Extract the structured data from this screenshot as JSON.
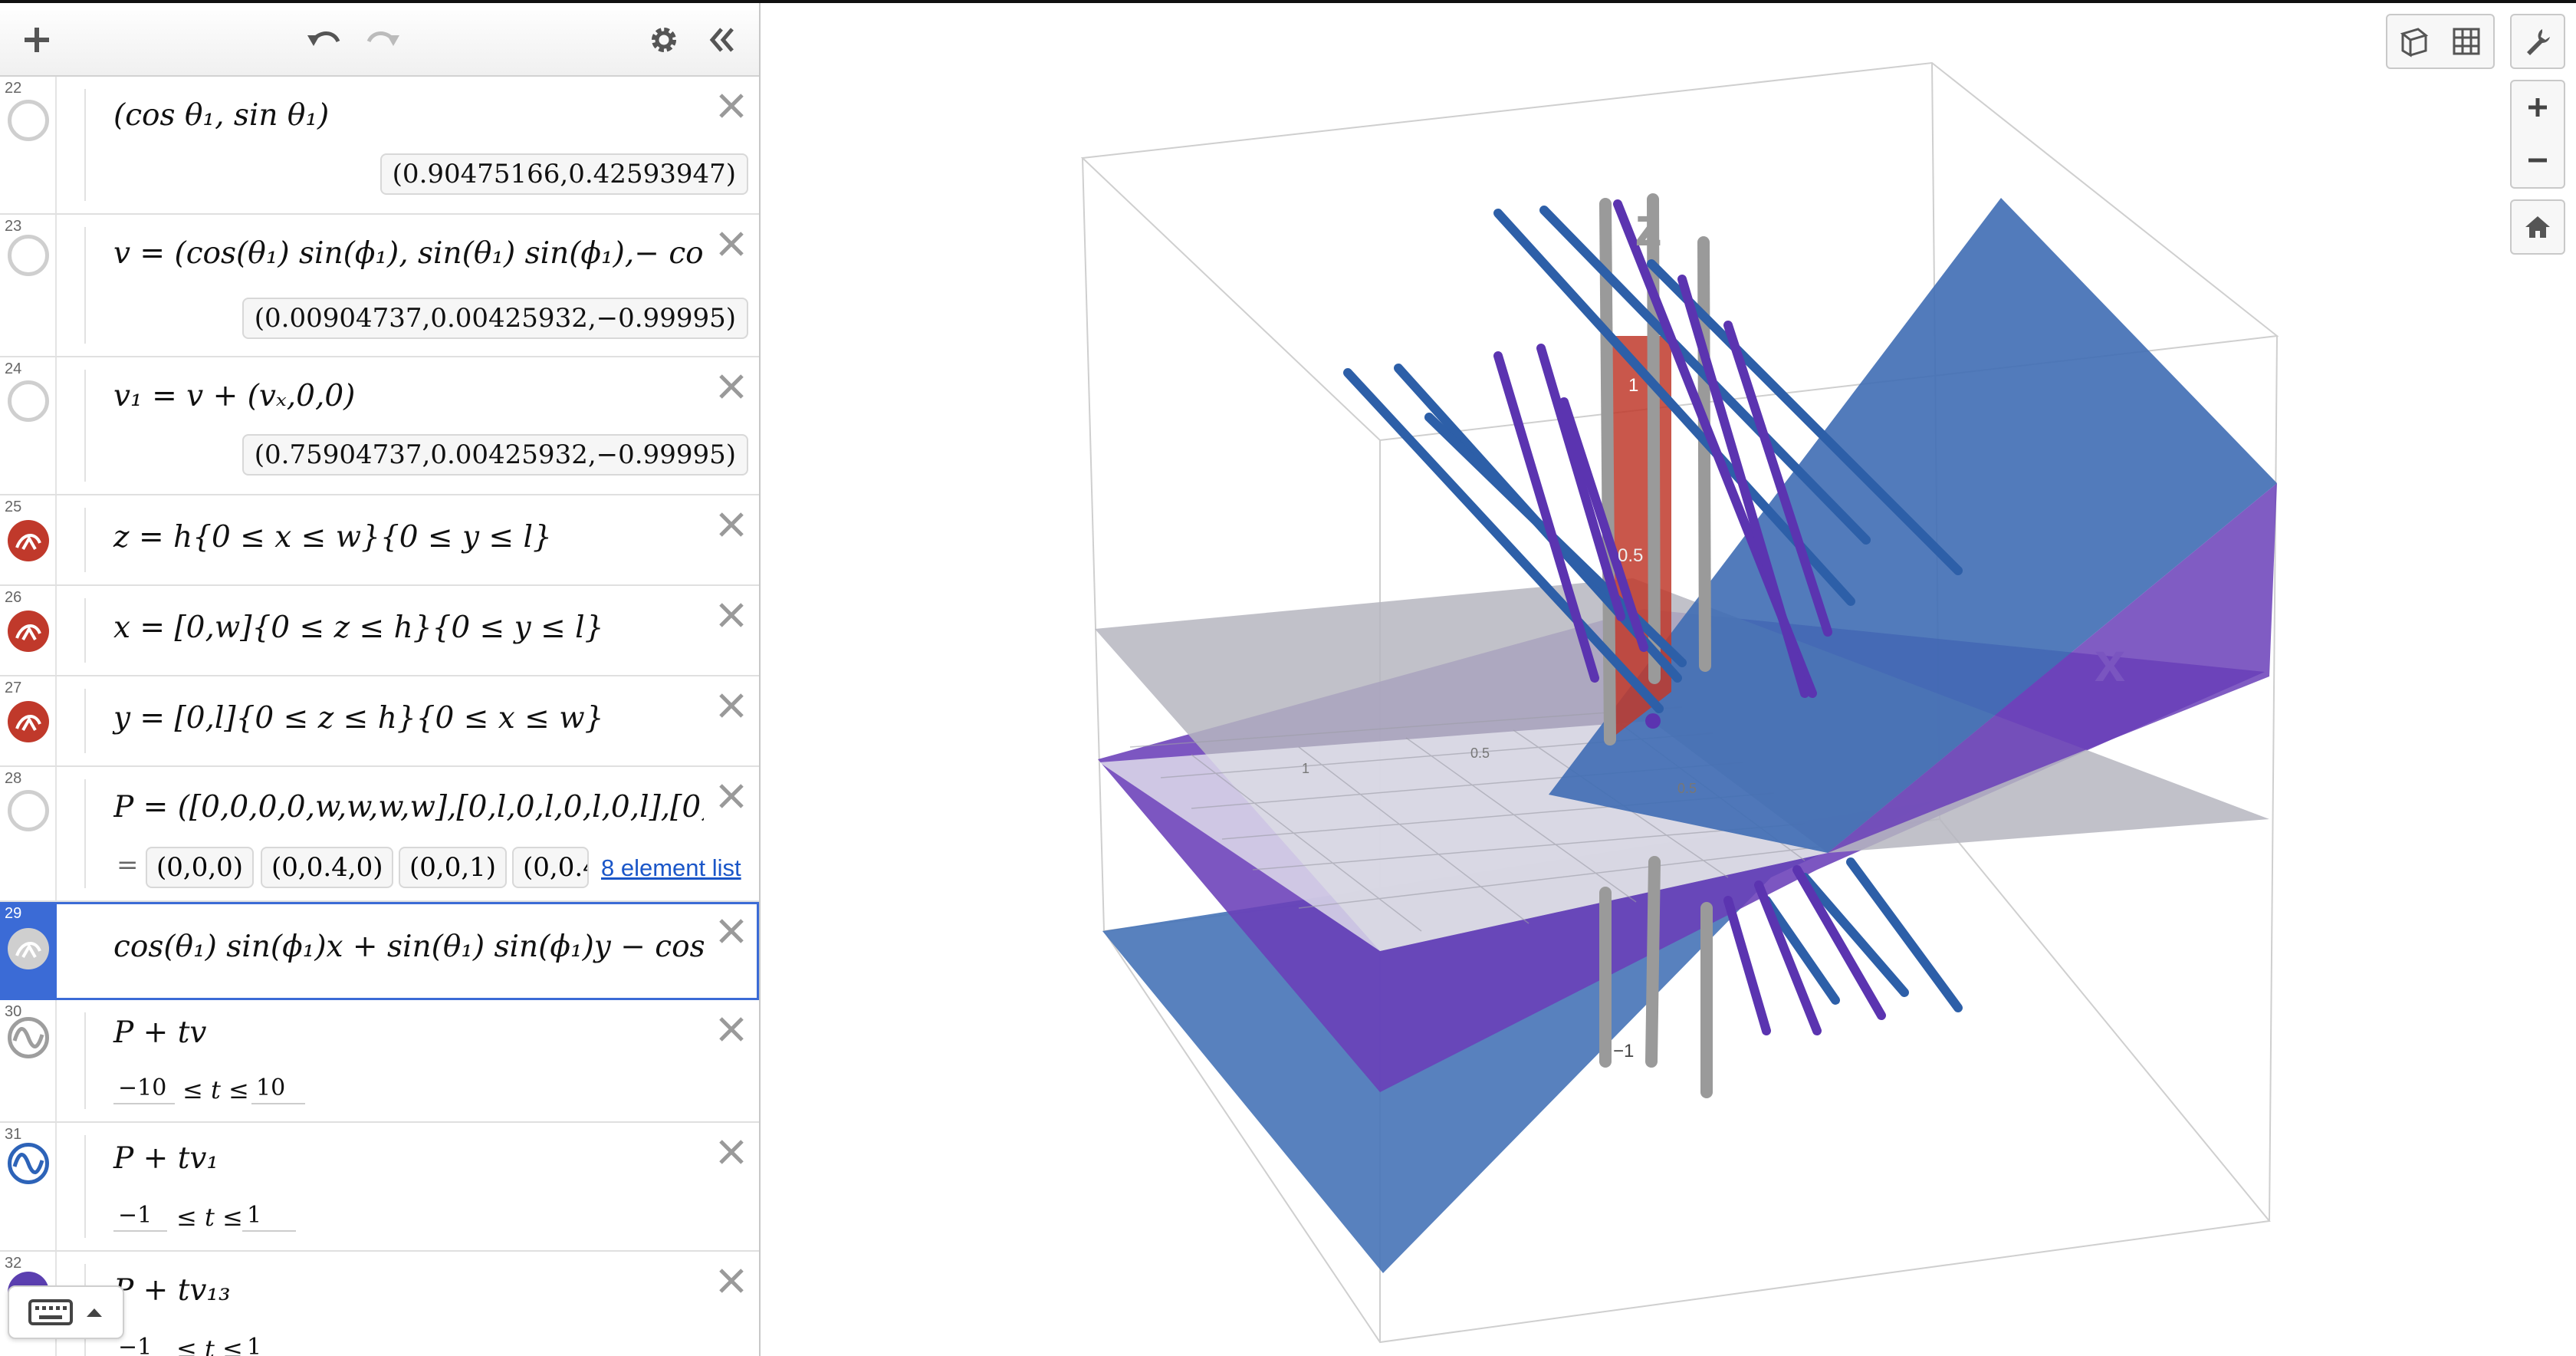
{
  "toolbar": {
    "add": "add-expression",
    "undo": "undo",
    "redo": "redo",
    "settings": "settings",
    "collapse": "collapse-panel"
  },
  "expressions": [
    {
      "n": "22",
      "icon": "empty",
      "tex": "(cos θ₁, sin θ₁)",
      "eval": "(0.90475166,0.42593947)"
    },
    {
      "n": "23",
      "icon": "empty",
      "tex": "v = (cos(θ₁) sin(ϕ₁), sin(θ₁) sin(ϕ₁),− cos ϕ",
      "eval": "(0.00904737,0.00425932,−0.99995)"
    },
    {
      "n": "24",
      "icon": "empty",
      "tex": "v₁ = v + (vₓ,0,0)",
      "eval": "(0.75904737,0.00425932,−0.99995)"
    },
    {
      "n": "25",
      "icon": "red",
      "tex": "z = h{0 ≤ x ≤ w}{0 ≤ y ≤ l}"
    },
    {
      "n": "26",
      "icon": "red",
      "tex": "x = [0,w]{0 ≤ z ≤ h}{0 ≤ y ≤ l}"
    },
    {
      "n": "27",
      "icon": "red",
      "tex": "y = [0,l]{0 ≤ z ≤ h}{0 ≤ x ≤ w}"
    },
    {
      "n": "28",
      "icon": "empty",
      "tex": "P = ([0,0,0,0,w,w,w,w],[0,l,0,l,0,l,0,l],[0,0,l",
      "list": [
        "(0,0,0)",
        "(0,0.4,0)",
        "(0,0,1)",
        "(0,0.4"
      ],
      "list_link": "8 element list"
    },
    {
      "n": "29",
      "icon": "gray",
      "tex": "cos(θ₁) sin(ϕ₁)x + sin(θ₁) sin(ϕ₁)y − cos(ϕ"
    },
    {
      "n": "30",
      "icon": "wave-gray",
      "tex": "P + tv",
      "lo": "−10",
      "hi": "10",
      "var": "≤ t ≤"
    },
    {
      "n": "31",
      "icon": "wave-blue",
      "tex": "P + tv₁",
      "lo": "−1",
      "hi": "1",
      "var": "≤ t ≤"
    },
    {
      "n": "32",
      "icon": "wave-purple",
      "tex": "P + tv₁₃",
      "lo": "−1",
      "hi": "1",
      "var": "≤ t ≤"
    }
  ],
  "graph": {
    "axis_labels": {
      "z": "z",
      "x": "x"
    },
    "tick_labels": [
      "1",
      "0.5",
      "−1",
      "0.5",
      "0.5",
      "1"
    ],
    "colors": {
      "blue": "#4a76b8",
      "purple": "#6a3fb8",
      "gray": "#b8b8c0",
      "red": "#c0392b",
      "axis": "#999999"
    }
  },
  "graph_controls": [
    "cube-view-icon",
    "grid-view-icon",
    "wrench-icon",
    "zoom-in-icon",
    "zoom-out-icon",
    "home-icon"
  ]
}
